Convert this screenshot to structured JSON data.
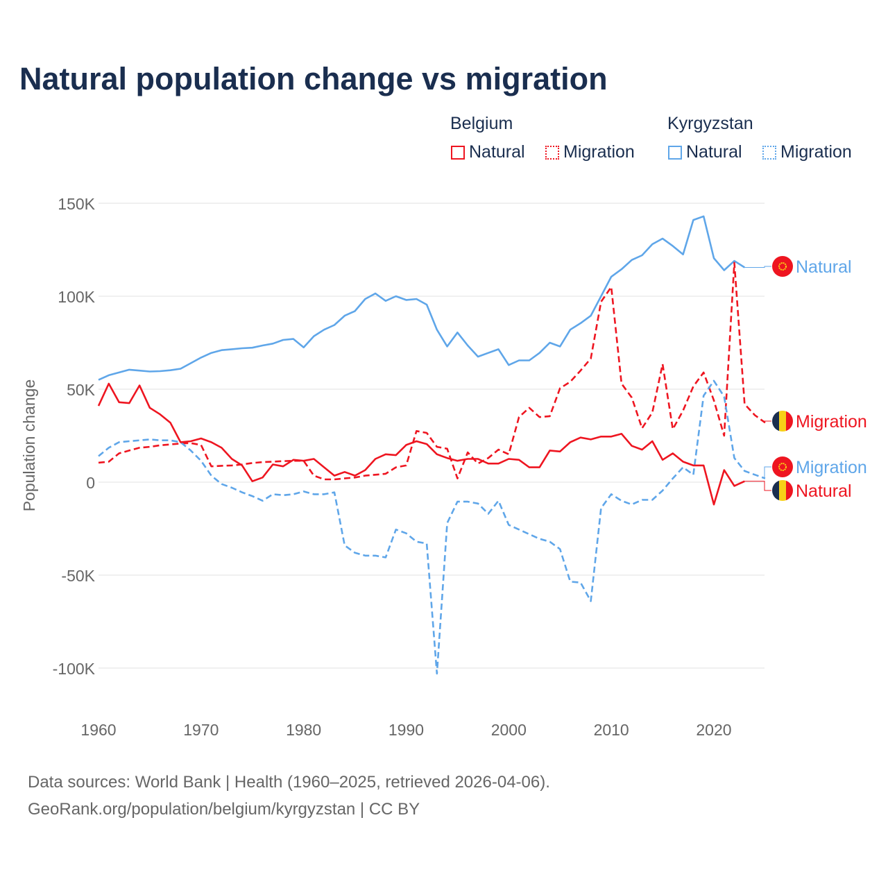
{
  "title": "Natural population change vs migration",
  "legend": {
    "groups": [
      {
        "country": "Belgium",
        "items": [
          "Natural",
          "Migration"
        ]
      },
      {
        "country": "Kyrgyzstan",
        "items": [
          "Natural",
          "Migration"
        ]
      }
    ]
  },
  "colors": {
    "belgium": "#ee1520",
    "kyrgyzstan": "#5fa6e9",
    "title": "#1a2e4f",
    "grid": "#e6e6e6"
  },
  "source": {
    "line1": "Data sources: World Bank | Health (1960–2025, retrieved 2026-04-06).",
    "line2": "GeoRank.org/population/belgium/kyrgyzstan | CC BY"
  },
  "chart_data": {
    "type": "line",
    "title": "Natural population change vs migration",
    "xlabel": "",
    "ylabel": "Population change",
    "xlim": [
      1960,
      2025
    ],
    "ylim": [
      -110000,
      155000
    ],
    "yticks": [
      150000,
      100000,
      50000,
      0,
      -50000,
      -100000
    ],
    "ytick_labels": [
      "150K",
      "100K",
      "50K",
      "0",
      "-50K",
      "-100K"
    ],
    "xticks": [
      1960,
      1970,
      1980,
      1990,
      2000,
      2010,
      2020
    ],
    "grid": true,
    "legend_position": "top-right",
    "start_year": 1960,
    "series": [
      {
        "name": "Kyrgyzstan Natural",
        "country": "Kyrgyzstan",
        "kind": "Natural",
        "end_label": "Natural",
        "dashed": false,
        "values": [
          55000,
          57500,
          59000,
          60500,
          60000,
          59500,
          59700,
          60200,
          61000,
          64000,
          67000,
          69500,
          71000,
          71500,
          72000,
          72300,
          73500,
          74500,
          76500,
          77000,
          72500,
          78500,
          82000,
          84500,
          89500,
          92000,
          98500,
          101500,
          97500,
          100000,
          98000,
          98500,
          95500,
          82000,
          73000,
          80500,
          73500,
          67500,
          69500,
          71500,
          63000,
          65500,
          65500,
          69500,
          75000,
          73000,
          82000,
          85500,
          89500,
          100000,
          110500,
          114500,
          119500,
          122000,
          128000,
          131000,
          127000,
          122500,
          141000,
          143000,
          120500,
          114000,
          119000,
          115500
        ]
      },
      {
        "name": "Belgium Migration",
        "country": "Belgium",
        "kind": "Migration",
        "end_label": "Migration",
        "dashed": true,
        "values": [
          10500,
          11000,
          15500,
          17000,
          18500,
          19000,
          19800,
          20300,
          20800,
          21000,
          20000,
          8500,
          8800,
          9000,
          9500,
          10300,
          10800,
          11000,
          11300,
          11500,
          11500,
          3500,
          1500,
          1500,
          2000,
          2500,
          3500,
          4000,
          4500,
          8000,
          9000,
          27500,
          26500,
          19000,
          18000,
          2000,
          16000,
          10000,
          13000,
          17500,
          15000,
          35000,
          40000,
          35000,
          35500,
          50500,
          54000,
          60000,
          66500,
          97000,
          105000,
          53000,
          45500,
          29000,
          37500,
          63500,
          28500,
          38500,
          51500,
          59000,
          44000,
          25000,
          118000,
          42000,
          36000,
          32000
        ]
      },
      {
        "name": "Kyrgyzstan Migration",
        "country": "Kyrgyzstan",
        "kind": "Migration",
        "end_label": "Migration",
        "dashed": true,
        "values": [
          14000,
          18500,
          21500,
          22000,
          22500,
          23000,
          22500,
          22500,
          21500,
          17000,
          11500,
          3500,
          -1000,
          -3000,
          -5500,
          -7500,
          -10000,
          -6500,
          -7000,
          -6500,
          -5000,
          -6500,
          -6500,
          -5500,
          -34000,
          -38000,
          -39500,
          -39500,
          -40500,
          -25500,
          -27500,
          -32000,
          -33000,
          -103000,
          -22000,
          -10500,
          -10500,
          -11500,
          -17000,
          -10000,
          -23000,
          -25500,
          -28000,
          -30500,
          -32000,
          -36000,
          -53500,
          -54000,
          -64000,
          -14000,
          -6500,
          -10000,
          -12000,
          -9500,
          -9500,
          -4500,
          2000,
          8000,
          4000,
          46500,
          54500,
          46000,
          13000,
          6000,
          4000,
          2000
        ]
      },
      {
        "name": "Belgium Natural",
        "country": "Belgium",
        "kind": "Natural",
        "end_label": "Natural",
        "dashed": false,
        "values": [
          41000,
          53000,
          43000,
          42500,
          52000,
          40000,
          36500,
          32000,
          21500,
          22000,
          23500,
          21500,
          18500,
          12500,
          9000,
          500,
          2500,
          9500,
          8500,
          12000,
          11500,
          12500,
          8000,
          3500,
          5500,
          3500,
          6500,
          12500,
          15000,
          14500,
          20000,
          22000,
          20500,
          15000,
          13000,
          11500,
          12500,
          12500,
          10000,
          10000,
          12500,
          12000,
          8000,
          8000,
          17000,
          16500,
          21500,
          24000,
          23000,
          24500,
          24500,
          26000,
          19500,
          17500,
          22000,
          12000,
          15500,
          11000,
          9000,
          9000,
          -12000,
          6500,
          -2000,
          500
        ]
      }
    ]
  }
}
